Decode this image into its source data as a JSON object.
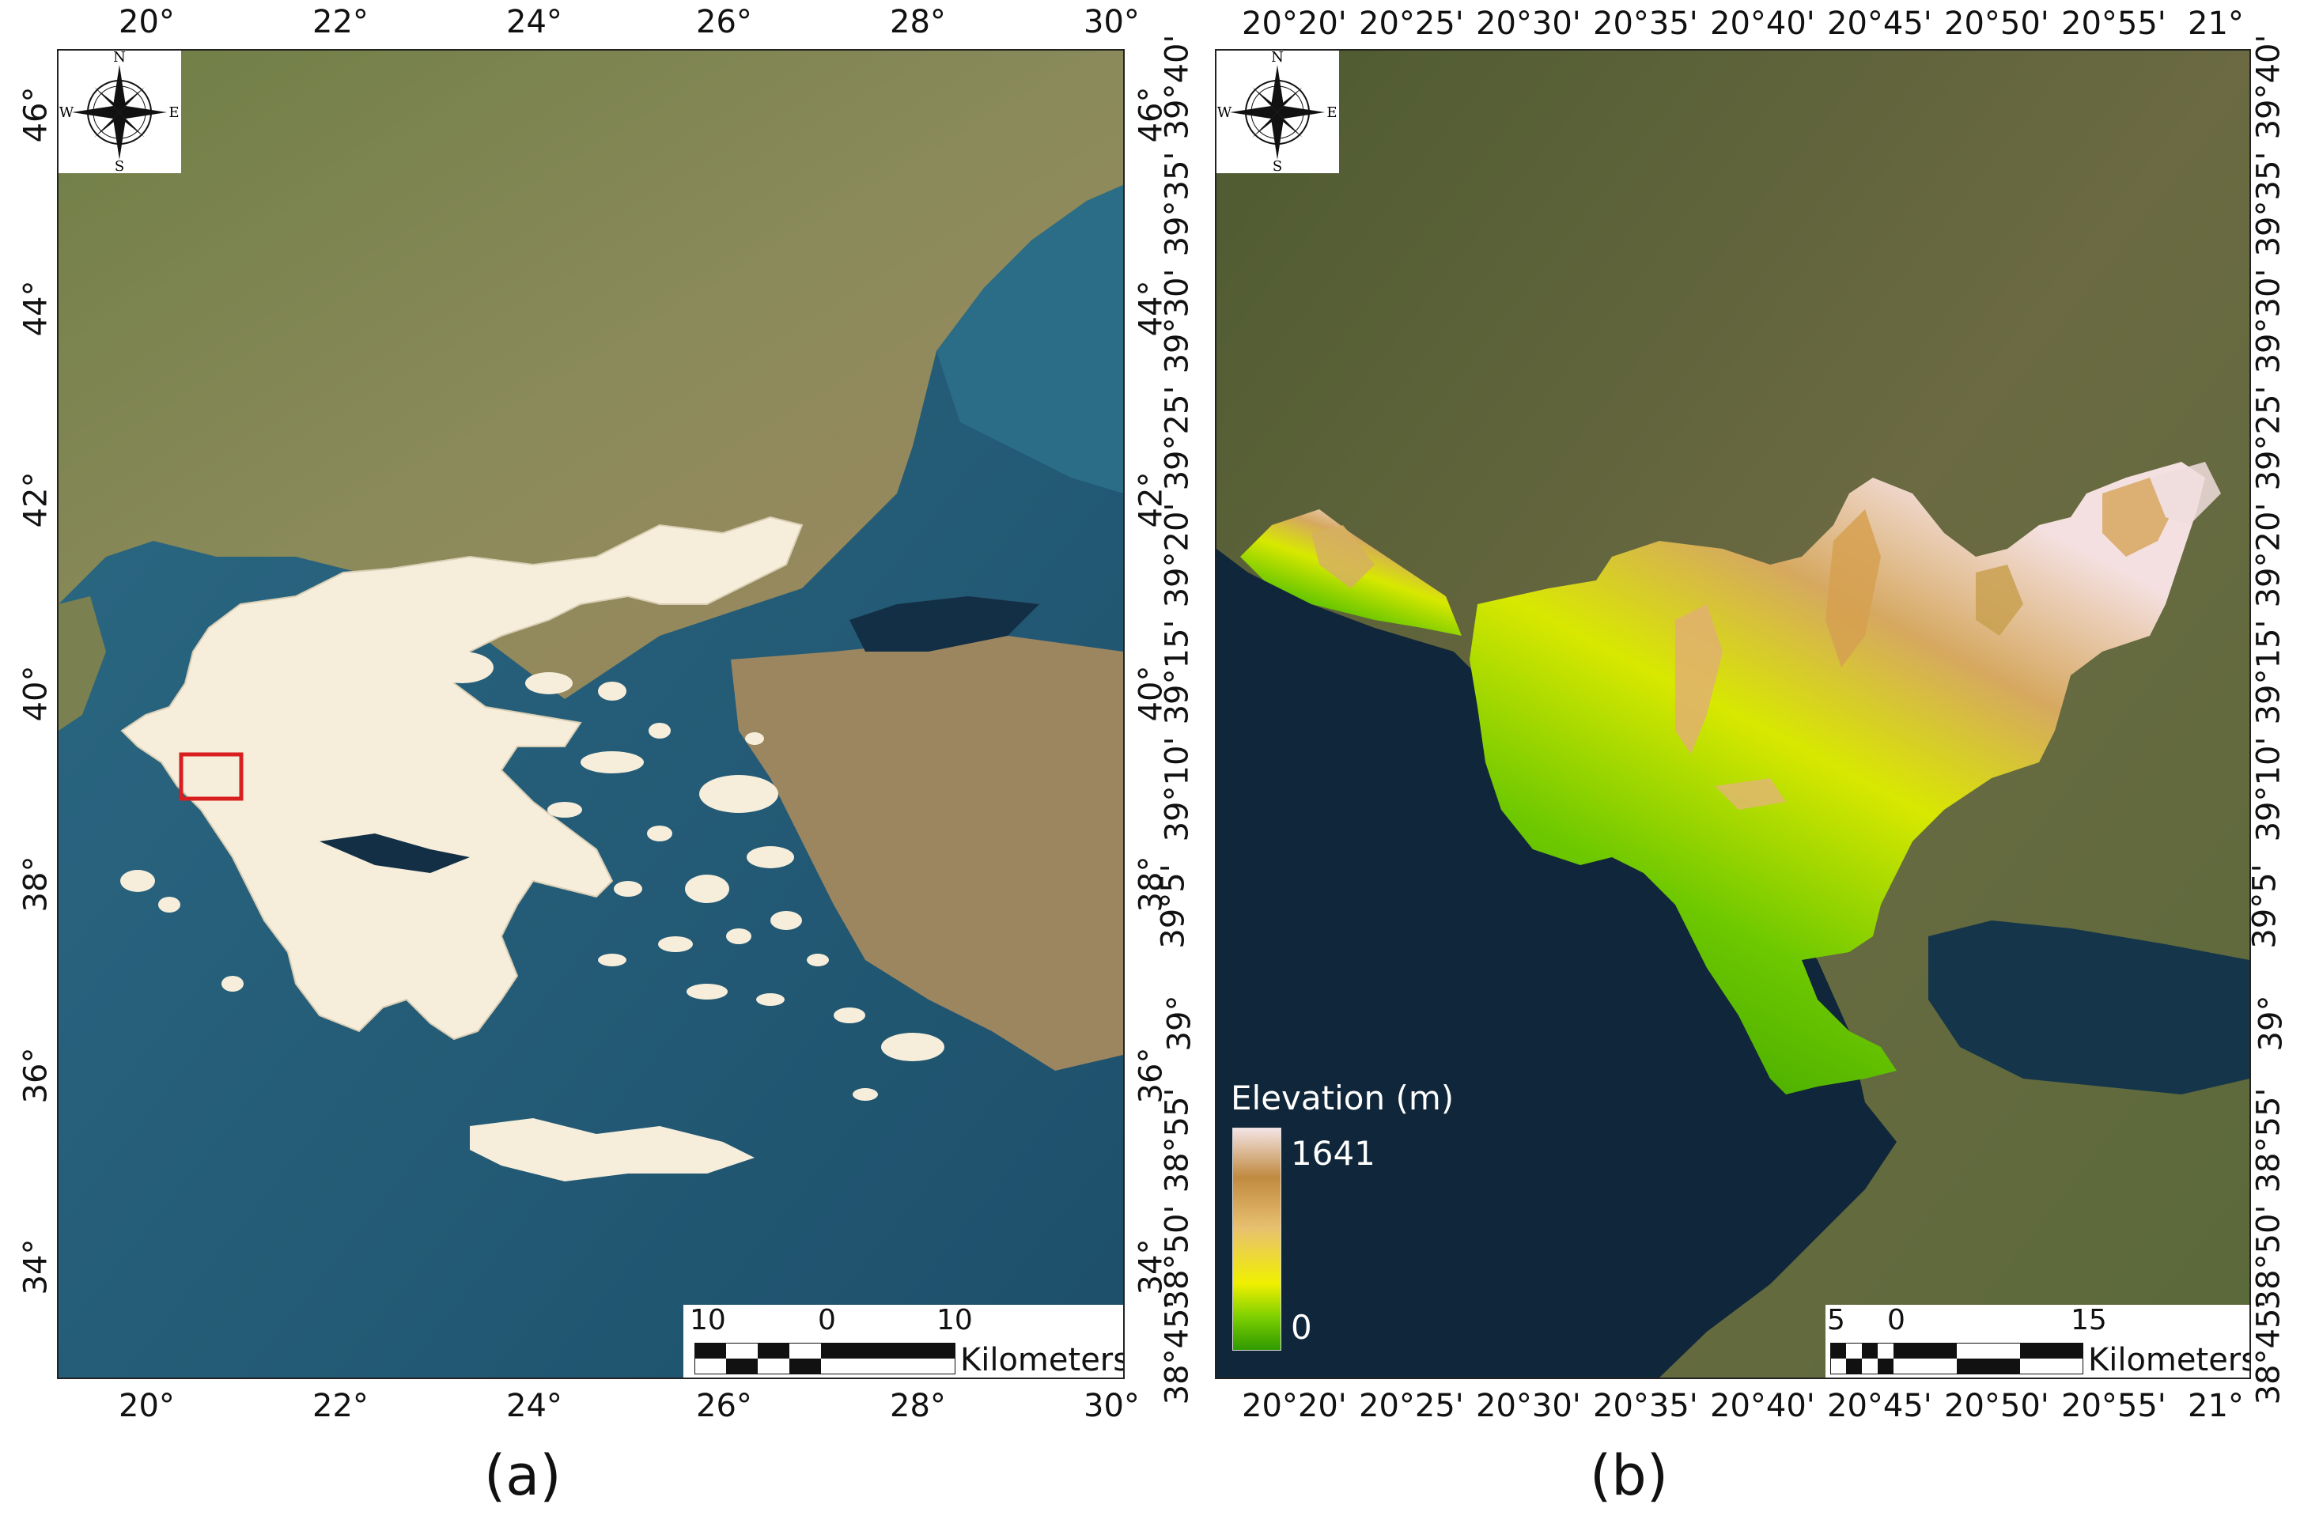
{
  "panel_a": {
    "caption": "(a)",
    "top_ticks": [
      "20°",
      "22°",
      "24°",
      "26°",
      "28°",
      "30°"
    ],
    "bottom_ticks": [
      "20°",
      "22°",
      "24°",
      "26°",
      "28°",
      "30°"
    ],
    "left_ticks": [
      "46°",
      "44°",
      "42°",
      "40°",
      "38°",
      "36°",
      "34°"
    ],
    "right_ticks": [
      "46°",
      "44°",
      "42°",
      "40°",
      "38°",
      "36°",
      "34°"
    ],
    "scalebar": {
      "labels": [
        "10",
        "0",
        "10"
      ],
      "unit": "Kilometers"
    },
    "compass": {
      "n": "N",
      "s": "S",
      "e": "E",
      "w": "W"
    },
    "study_area_color": "#d81e1e"
  },
  "panel_b": {
    "caption": "(b)",
    "top_ticks": [
      "20°20'",
      "20°25'",
      "20°30'",
      "20°35'",
      "20°40'",
      "20°45'",
      "20°50'",
      "20°55'",
      "21°"
    ],
    "bottom_ticks": [
      "20°20'",
      "20°25'",
      "20°30'",
      "20°35'",
      "20°40'",
      "20°45'",
      "20°50'",
      "20°55'",
      "21°"
    ],
    "left_ticks": [
      "39°40'",
      "39°35'",
      "39°30'",
      "39°25'",
      "39°20'",
      "39°15'",
      "39°10'",
      "39°5'",
      "39°",
      "38°55'",
      "38°50'",
      "38°45'"
    ],
    "right_ticks": [
      "39°40'",
      "39°35'",
      "39°30'",
      "39°25'",
      "39°20'",
      "39°15'",
      "39°10'",
      "39°5'",
      "39°",
      "38°55'",
      "38°50'",
      "38°45'"
    ],
    "legend": {
      "title": "Elevation (m)",
      "max": "1641",
      "min": "0"
    },
    "scalebar": {
      "labels": [
        "5",
        "0",
        "15"
      ],
      "unit": "Kilometers"
    },
    "compass": {
      "n": "N",
      "s": "S",
      "e": "E",
      "w": "W"
    }
  }
}
